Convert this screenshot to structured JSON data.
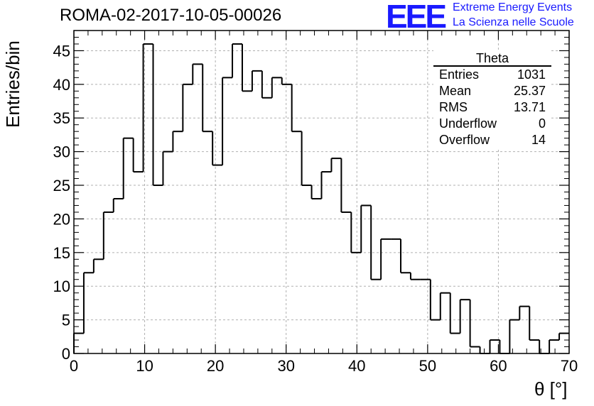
{
  "title": "ROMA-02-2017-10-05-00026",
  "logo": {
    "mark": "EEE",
    "line1": "Extreme Energy Events",
    "line2": "La Scienza nelle Scuole"
  },
  "stats": {
    "name": "Theta",
    "rows": [
      {
        "label": "Entries",
        "value": "1031"
      },
      {
        "label": "Mean",
        "value": "25.37"
      },
      {
        "label": "RMS",
        "value": "13.71"
      },
      {
        "label": "Underflow",
        "value": "0"
      },
      {
        "label": "Overflow",
        "value": "14"
      }
    ]
  },
  "chart_data": {
    "type": "bar",
    "title": "ROMA-02-2017-10-05-00026",
    "xlabel": "θ [°]",
    "ylabel": "Entries/bin",
    "xlim": [
      0,
      70
    ],
    "ylim": [
      0,
      48
    ],
    "bin_width": 1.4,
    "x_ticks": [
      0,
      10,
      20,
      30,
      40,
      50,
      60,
      70
    ],
    "y_ticks": [
      0,
      5,
      10,
      15,
      20,
      25,
      30,
      35,
      40,
      45
    ],
    "grid": true,
    "values": [
      3,
      12,
      14,
      21,
      23,
      32,
      27,
      46,
      25,
      30,
      33,
      40,
      43,
      33,
      28,
      41,
      46,
      39,
      42,
      38,
      41,
      40,
      33,
      25,
      23,
      27,
      29,
      21,
      15,
      22,
      11,
      17,
      17,
      12,
      11,
      11,
      5,
      9,
      3,
      8,
      1,
      0,
      2,
      0,
      5,
      7,
      2,
      0,
      2,
      3
    ],
    "colors": {
      "line": "#000000",
      "grid": "#b0b0b0",
      "logo": "#1a1aff"
    }
  }
}
